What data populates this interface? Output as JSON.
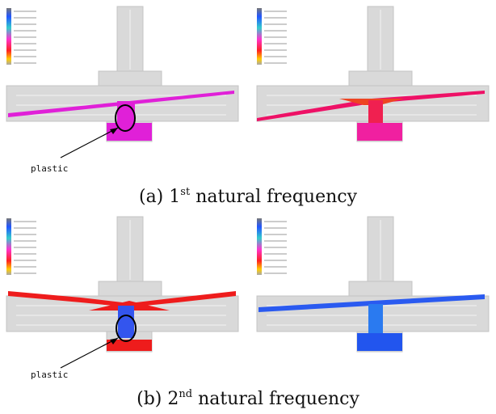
{
  "panels": [
    {
      "label": "(a)",
      "number": "1",
      "ordinal": "st",
      "caption": "natural frequency",
      "annotation": "plastic"
    },
    {
      "label": "(b)",
      "number": "2",
      "ordinal": "nd",
      "caption": "natural frequency",
      "annotation": "plastic"
    }
  ]
}
